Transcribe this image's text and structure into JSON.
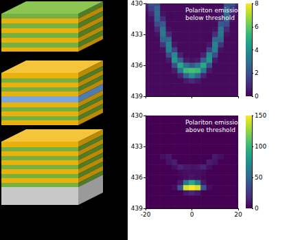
{
  "chart_data": [
    {
      "type": "heatmap",
      "annotation": "Polariton emission\nbelow threshold",
      "x": [
        -20,
        -17.5,
        -15,
        -12.5,
        -10,
        -7.5,
        -5,
        -2.5,
        0,
        2.5,
        5,
        7.5,
        10,
        12.5,
        15,
        17.5,
        20
      ],
      "y": [
        430,
        430.5,
        431,
        431.5,
        432,
        432.5,
        433,
        433.5,
        434,
        434.5,
        435,
        435.5,
        436,
        436.5,
        437,
        437.5,
        438,
        438.5,
        439
      ],
      "z": [
        [
          1.0,
          2.0,
          1.8,
          0.2,
          0.2,
          0.2,
          0.2,
          0.2,
          0.2,
          0.2,
          0.2,
          0.2,
          0.2,
          0.2,
          1.8,
          2.0,
          1.0
        ],
        [
          0.6,
          1.4,
          2.6,
          0.2,
          0.2,
          0.2,
          0.2,
          0.2,
          0.2,
          0.2,
          0.2,
          0.2,
          0.2,
          0.2,
          2.6,
          1.4,
          0.6
        ],
        [
          0.3,
          0.8,
          2.8,
          0.4,
          0.2,
          0.2,
          0.2,
          0.2,
          0.2,
          0.2,
          0.2,
          0.2,
          0.2,
          0.4,
          2.8,
          0.8,
          0.3
        ],
        [
          0.2,
          0.4,
          2.6,
          1.0,
          0.2,
          0.2,
          0.2,
          0.2,
          0.2,
          0.2,
          0.2,
          0.2,
          0.2,
          1.0,
          2.6,
          0.4,
          0.2
        ],
        [
          0.2,
          0.2,
          1.8,
          2.2,
          0.2,
          0.2,
          0.2,
          0.2,
          0.2,
          0.2,
          0.2,
          0.2,
          0.2,
          2.2,
          1.8,
          0.2,
          0.2
        ],
        [
          0.2,
          0.2,
          0.9,
          3.0,
          0.4,
          0.2,
          0.2,
          0.2,
          0.2,
          0.2,
          0.2,
          0.2,
          0.4,
          3.0,
          0.9,
          0.2,
          0.2
        ],
        [
          0.2,
          0.2,
          0.4,
          3.2,
          1.0,
          0.2,
          0.2,
          0.2,
          0.2,
          0.2,
          0.2,
          0.2,
          1.0,
          3.2,
          0.4,
          0.2,
          0.2
        ],
        [
          0.2,
          0.2,
          0.2,
          2.6,
          2.6,
          0.2,
          0.2,
          0.2,
          0.2,
          0.2,
          0.2,
          0.2,
          2.6,
          2.6,
          0.2,
          0.2,
          0.2
        ],
        [
          0.2,
          0.2,
          0.2,
          1.2,
          3.6,
          0.5,
          0.2,
          0.2,
          0.2,
          0.2,
          0.2,
          0.5,
          3.6,
          1.2,
          0.2,
          0.2,
          0.2
        ],
        [
          0.2,
          0.2,
          0.2,
          0.4,
          3.4,
          1.6,
          0.2,
          0.2,
          0.2,
          0.2,
          0.2,
          1.6,
          3.4,
          0.4,
          0.2,
          0.2,
          0.2
        ],
        [
          0.2,
          0.2,
          0.2,
          0.2,
          1.8,
          3.8,
          0.7,
          0.2,
          0.2,
          0.2,
          0.7,
          3.8,
          1.8,
          0.2,
          0.2,
          0.2,
          0.2
        ],
        [
          0.2,
          0.2,
          0.2,
          0.2,
          0.6,
          4.2,
          2.4,
          0.6,
          0.4,
          0.6,
          2.4,
          4.2,
          0.6,
          0.2,
          0.2,
          0.2,
          0.2
        ],
        [
          0.2,
          0.2,
          0.2,
          0.2,
          0.2,
          2.0,
          4.8,
          3.0,
          2.2,
          3.0,
          4.8,
          2.0,
          0.2,
          0.2,
          0.2,
          0.2,
          0.2
        ],
        [
          0.2,
          0.2,
          0.2,
          0.2,
          0.2,
          0.6,
          3.2,
          5.4,
          5.6,
          5.4,
          3.2,
          0.6,
          0.2,
          0.2,
          0.2,
          0.2,
          0.2
        ],
        [
          0.2,
          0.2,
          0.2,
          0.2,
          0.2,
          0.2,
          0.8,
          2.6,
          4.0,
          2.6,
          0.8,
          0.2,
          0.2,
          0.2,
          0.2,
          0.2,
          0.2
        ],
        [
          0.2,
          0.2,
          0.2,
          0.2,
          0.2,
          0.2,
          0.2,
          0.6,
          0.9,
          0.6,
          0.2,
          0.2,
          0.2,
          0.2,
          0.2,
          0.2,
          0.2
        ],
        [
          0.2,
          0.2,
          0.2,
          0.2,
          0.2,
          0.2,
          0.2,
          0.2,
          0.2,
          0.2,
          0.2,
          0.2,
          0.2,
          0.2,
          0.2,
          0.2,
          0.2
        ],
        [
          0.2,
          0.2,
          0.2,
          0.2,
          0.2,
          0.2,
          0.2,
          0.2,
          0.2,
          0.2,
          0.2,
          0.2,
          0.2,
          0.2,
          0.2,
          0.2,
          0.2
        ],
        [
          0.2,
          0.2,
          0.2,
          0.2,
          0.2,
          0.2,
          0.2,
          0.2,
          0.2,
          0.2,
          0.2,
          0.2,
          0.2,
          0.2,
          0.2,
          0.2,
          0.2
        ]
      ],
      "xlim": [
        -20,
        20
      ],
      "xticks": [
        -20,
        0,
        20
      ],
      "ylim": [
        439,
        430
      ],
      "yticks": [
        430,
        433,
        436,
        439
      ],
      "colorbar": {
        "range": [
          0,
          8
        ],
        "ticks": [
          0,
          2,
          4,
          6,
          8
        ]
      },
      "tick_labels": "y",
      "grid": false
    },
    {
      "type": "heatmap",
      "annotation": "Polariton emission\nabove threshold",
      "x": [
        -20,
        -17.5,
        -15,
        -12.5,
        -10,
        -7.5,
        -5,
        -2.5,
        0,
        2.5,
        5,
        7.5,
        10,
        12.5,
        15,
        17.5,
        20
      ],
      "y": [
        430,
        430.5,
        431,
        431.5,
        432,
        432.5,
        433,
        433.5,
        434,
        434.5,
        435,
        435.5,
        436,
        436.5,
        437,
        437.5,
        438,
        438.5,
        439
      ],
      "z": [
        [
          0,
          0,
          0,
          0,
          0,
          0,
          0,
          0,
          0,
          0,
          0,
          0,
          0,
          0,
          0,
          0,
          0
        ],
        [
          0,
          0,
          0,
          0,
          0,
          0,
          0,
          0,
          0,
          0,
          0,
          0,
          0,
          0,
          0,
          0,
          0
        ],
        [
          0,
          0,
          0,
          0,
          0,
          0,
          0,
          0,
          0,
          0,
          0,
          0,
          0,
          0,
          0,
          0,
          0
        ],
        [
          0,
          0,
          0,
          0,
          0,
          0,
          0,
          0,
          0,
          0,
          0,
          0,
          0,
          0,
          0,
          0,
          0
        ],
        [
          0,
          0,
          0,
          0,
          0,
          0,
          0,
          0,
          0,
          0,
          0,
          0,
          0,
          0,
          0,
          0,
          0
        ],
        [
          0,
          0,
          0,
          0,
          0,
          0,
          0,
          0,
          0,
          0,
          0,
          0,
          0,
          0,
          0,
          0,
          0
        ],
        [
          0,
          0,
          0,
          0,
          0,
          0,
          0,
          0,
          0,
          0,
          0,
          0,
          0,
          0,
          0,
          0,
          0
        ],
        [
          0,
          0,
          0,
          0,
          0,
          0,
          0,
          0,
          0,
          0,
          0,
          0,
          0,
          0,
          0,
          0,
          0
        ],
        [
          0,
          0,
          0,
          6,
          10,
          0,
          0,
          0,
          0,
          0,
          0,
          0,
          10,
          6,
          0,
          0,
          0
        ],
        [
          0,
          0,
          0,
          0,
          8,
          12,
          0,
          0,
          0,
          0,
          0,
          12,
          8,
          0,
          0,
          0,
          0
        ],
        [
          0,
          0,
          0,
          0,
          0,
          6,
          15,
          10,
          8,
          10,
          15,
          6,
          0,
          0,
          0,
          0,
          0
        ],
        [
          0,
          0,
          0,
          0,
          0,
          0,
          4,
          6,
          6,
          6,
          4,
          0,
          0,
          0,
          0,
          0,
          0
        ],
        [
          0,
          0,
          0,
          0,
          0,
          0,
          2,
          5,
          8,
          5,
          2,
          0,
          0,
          0,
          0,
          0,
          0
        ],
        [
          0,
          0,
          0,
          0,
          0,
          0,
          10,
          60,
          90,
          60,
          10,
          0,
          0,
          0,
          0,
          0,
          0
        ],
        [
          0,
          0,
          0,
          0,
          0,
          5,
          40,
          140,
          150,
          140,
          40,
          5,
          0,
          0,
          0,
          0,
          0
        ],
        [
          0,
          0,
          0,
          0,
          0,
          0,
          0,
          10,
          15,
          10,
          0,
          0,
          0,
          0,
          0,
          0,
          0
        ],
        [
          0,
          0,
          0,
          0,
          0,
          0,
          0,
          0,
          0,
          0,
          0,
          0,
          0,
          0,
          0,
          0,
          0
        ],
        [
          0,
          0,
          0,
          0,
          0,
          0,
          0,
          0,
          0,
          0,
          0,
          0,
          0,
          0,
          0,
          0,
          0
        ],
        [
          0,
          0,
          0,
          0,
          0,
          0,
          0,
          0,
          0,
          0,
          0,
          0,
          0,
          0,
          0,
          0,
          0
        ]
      ],
      "xlim": [
        -20,
        20
      ],
      "xticks": [
        -20,
        0,
        20
      ],
      "ylim": [
        439,
        430
      ],
      "yticks": [
        430,
        433,
        436,
        439
      ],
      "colorbar": {
        "range": [
          0,
          150
        ],
        "ticks": [
          0,
          50,
          100,
          150
        ]
      },
      "grid": false
    }
  ]
}
